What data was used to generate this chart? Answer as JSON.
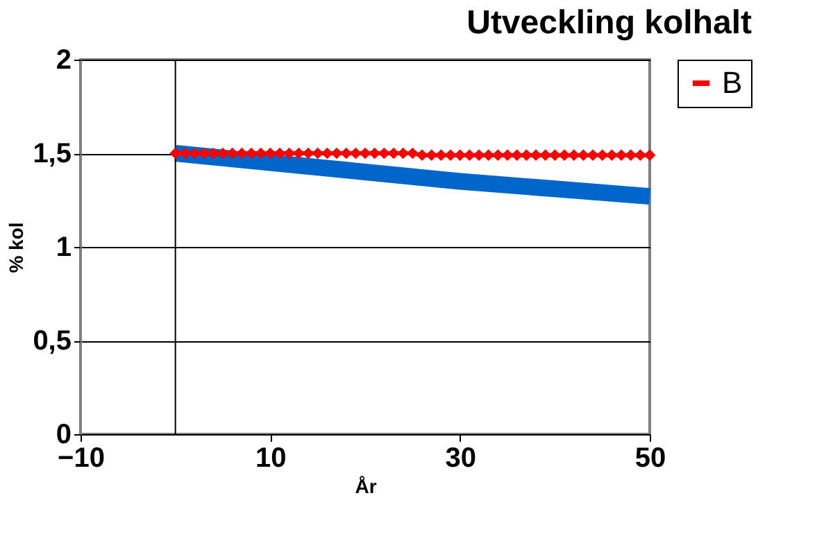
{
  "chart_data": {
    "type": "line",
    "title": "Utveckling kolhalt",
    "xlabel": "År",
    "ylabel": "% kol",
    "xlim": [
      -10,
      50
    ],
    "xticks": [
      -10,
      10,
      30,
      50
    ],
    "ylim": [
      0,
      2
    ],
    "yticks": [
      {
        "value": 0,
        "label": "0"
      },
      {
        "value": 0.5,
        "label": "0,5"
      },
      {
        "value": 1,
        "label": "1"
      },
      {
        "value": 1.5,
        "label": "1,5"
      },
      {
        "value": 2,
        "label": "2"
      }
    ],
    "grid": "y",
    "legend": "right",
    "ref_lines": [
      {
        "axis": "x",
        "value": 0,
        "label": null,
        "color": "#000000"
      }
    ],
    "series": [
      {
        "name": "B",
        "color": "#ff0000",
        "marker": "diamond",
        "x": [
          0,
          1,
          2,
          3,
          4,
          5,
          6,
          7,
          8,
          9,
          10,
          11,
          12,
          13,
          14,
          15,
          16,
          17,
          18,
          19,
          20,
          21,
          22,
          23,
          24,
          25,
          26,
          27,
          28,
          29,
          30,
          31,
          32,
          33,
          34,
          35,
          36,
          37,
          38,
          39,
          40,
          41,
          42,
          43,
          44,
          45,
          46,
          47,
          48,
          49,
          50
        ],
        "values": [
          1.5,
          1.5,
          1.5,
          1.5,
          1.5,
          1.5,
          1.5,
          1.5,
          1.5,
          1.5,
          1.5,
          1.5,
          1.5,
          1.5,
          1.5,
          1.5,
          1.5,
          1.5,
          1.5,
          1.5,
          1.5,
          1.5,
          1.5,
          1.5,
          1.5,
          1.5,
          1.49,
          1.49,
          1.49,
          1.49,
          1.49,
          1.49,
          1.49,
          1.49,
          1.49,
          1.49,
          1.49,
          1.49,
          1.49,
          1.49,
          1.49,
          1.49,
          1.49,
          1.49,
          1.49,
          1.49,
          1.49,
          1.49,
          1.49,
          1.49,
          1.49
        ]
      },
      {
        "color": "#0066cc",
        "marker": "none",
        "x": [
          0,
          10,
          20,
          30,
          40,
          50
        ],
        "values": [
          1.5,
          1.45,
          1.4,
          1.35,
          1.31,
          1.27
        ]
      }
    ]
  }
}
